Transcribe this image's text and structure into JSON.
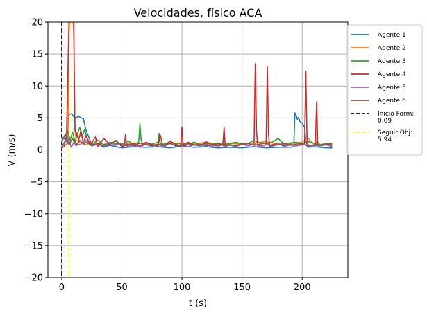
{
  "chart_data": {
    "type": "line",
    "title": "Velocidades, físico ACA",
    "xlabel": "t (s)",
    "ylabel": "V (m/s)",
    "xlim": [
      -11.5,
      238
    ],
    "ylim": [
      -20,
      20
    ],
    "xticks": [
      0,
      50,
      100,
      150,
      200
    ],
    "yticks": [
      -20,
      -15,
      -10,
      -5,
      0,
      5,
      10,
      15,
      20
    ],
    "grid": true,
    "legend_position": "outside-right-top",
    "series": [
      {
        "name": "Agente 1",
        "color": "#1f77b4",
        "x": [
          0,
          2,
          4,
          6,
          8,
          10,
          12,
          14,
          16,
          18,
          20,
          25,
          30,
          35,
          40,
          50,
          60,
          70,
          80,
          90,
          100,
          110,
          120,
          130,
          140,
          150,
          160,
          170,
          180,
          190,
          193,
          194,
          195,
          196,
          197,
          198,
          199,
          200,
          201,
          202,
          203,
          204,
          205,
          210,
          215,
          220,
          225
        ],
        "y": [
          2.0,
          1.8,
          1.3,
          5.5,
          5.7,
          5.2,
          5.0,
          5.3,
          5.0,
          4.9,
          3.2,
          0.8,
          0.9,
          0.4,
          0.7,
          0.3,
          0.5,
          0.4,
          0.5,
          0.3,
          0.6,
          0.4,
          0.5,
          0.3,
          0.4,
          0.3,
          0.5,
          0.3,
          0.4,
          0.4,
          0.5,
          5.8,
          5.4,
          4.8,
          5.1,
          4.5,
          4.3,
          4.2,
          3.9,
          3.5,
          1.5,
          0.8,
          0.4,
          0.5,
          0.4,
          0.3,
          0.3
        ]
      },
      {
        "name": "Agente 2",
        "color": "#ff7f0e",
        "x": [
          0,
          3,
          5,
          6,
          7,
          8,
          9,
          10,
          11,
          12,
          15,
          20,
          25,
          30,
          40,
          50,
          60,
          70,
          80,
          81,
          82,
          90,
          100,
          110,
          120,
          130,
          140,
          150,
          160,
          170,
          180,
          190,
          200,
          205,
          210,
          212,
          215,
          220,
          225
        ],
        "y": [
          0.6,
          0.8,
          1.0,
          18,
          22,
          20,
          22,
          18,
          3,
          1.5,
          1.2,
          0.8,
          1.2,
          0.7,
          1.0,
          0.8,
          1.1,
          0.9,
          0.8,
          2.6,
          0.9,
          1.0,
          1.1,
          0.9,
          1.2,
          0.8,
          1.0,
          0.9,
          1.1,
          1.3,
          0.9,
          1.0,
          1.2,
          1.8,
          0.9,
          1.4,
          0.8,
          1.0,
          0.9
        ]
      },
      {
        "name": "Agente 3",
        "color": "#2ca02c",
        "x": [
          0,
          3,
          5,
          7,
          9,
          11,
          13,
          15,
          17,
          19,
          21,
          23,
          25,
          30,
          35,
          40,
          45,
          50,
          55,
          60,
          64,
          65,
          66,
          68,
          70,
          75,
          80,
          81,
          82,
          85,
          90,
          95,
          100,
          105,
          110,
          115,
          120,
          125,
          130,
          135,
          140,
          145,
          150,
          155,
          160,
          165,
          170,
          175,
          180,
          185,
          190,
          195,
          200,
          205,
          210,
          215,
          220,
          225
        ],
        "y": [
          0.5,
          1.5,
          3.0,
          1.5,
          2.8,
          1.2,
          2.5,
          3.5,
          2.0,
          3.2,
          1.8,
          1.0,
          0.9,
          1.5,
          0.8,
          1.2,
          1.0,
          0.8,
          1.4,
          0.9,
          1.2,
          4.1,
          1.5,
          0.8,
          1.0,
          0.9,
          1.2,
          2.5,
          1.0,
          0.8,
          1.3,
          0.9,
          1.1,
          0.9,
          1.2,
          0.8,
          1.0,
          0.9,
          1.1,
          0.8,
          1.0,
          1.2,
          0.9,
          1.0,
          1.5,
          1.1,
          1.0,
          1.2,
          1.8,
          0.9,
          1.1,
          1.2,
          0.9,
          1.3,
          1.0,
          0.8,
          1.0,
          0.9
        ]
      },
      {
        "name": "Agente 4",
        "color": "#d62728",
        "x": [
          0,
          2,
          4,
          6,
          7,
          8,
          9,
          10,
          11,
          12,
          14,
          16,
          18,
          20,
          24,
          28,
          30,
          35,
          40,
          45,
          50,
          52,
          53,
          54,
          56,
          60,
          65,
          70,
          75,
          80,
          82,
          84,
          86,
          90,
          95,
          99,
          100,
          101,
          105,
          110,
          115,
          120,
          125,
          130,
          134,
          135,
          136,
          140,
          145,
          150,
          155,
          160,
          161,
          162,
          163,
          165,
          168,
          170,
          171,
          172,
          173,
          175,
          180,
          185,
          190,
          195,
          200,
          202,
          203,
          204,
          205,
          210,
          211,
          212,
          213,
          215,
          220,
          225
        ],
        "y": [
          0.3,
          0.5,
          2.2,
          20,
          22,
          21,
          22,
          20,
          3,
          2.8,
          1.5,
          3.0,
          1.0,
          2.2,
          0.8,
          2.0,
          0.5,
          1.8,
          0.8,
          1.5,
          0.5,
          0.6,
          2.4,
          0.5,
          0.8,
          1.0,
          0.6,
          1.2,
          0.8,
          0.6,
          2.3,
          0.7,
          0.5,
          1.4,
          0.8,
          0.6,
          3.6,
          0.5,
          1.2,
          0.8,
          0.6,
          1.3,
          0.7,
          0.6,
          0.8,
          3.5,
          0.5,
          0.8,
          0.6,
          1.0,
          0.7,
          0.9,
          13.5,
          3.0,
          0.6,
          0.8,
          0.6,
          1.0,
          13.0,
          2.5,
          0.5,
          0.8,
          1.0,
          0.6,
          0.9,
          0.6,
          0.8,
          1.0,
          12.3,
          2.0,
          0.6,
          0.8,
          1.0,
          7.5,
          0.8,
          0.6,
          0.9,
          0.7
        ]
      },
      {
        "name": "Agente 5",
        "color": "#9467bd",
        "x": [
          0,
          5,
          8,
          10,
          15,
          20,
          25,
          30,
          35,
          40,
          45,
          50,
          55,
          60,
          65,
          70,
          75,
          80,
          85,
          90,
          95,
          100,
          105,
          110,
          115,
          120,
          125,
          130,
          135,
          140,
          145,
          150,
          155,
          160,
          165,
          170,
          175,
          180,
          185,
          190,
          195,
          200,
          205,
          210,
          215,
          220,
          225
        ],
        "y": [
          0.3,
          2.0,
          0.4,
          1.2,
          0.8,
          1.5,
          0.6,
          0.9,
          0.5,
          1.2,
          0.7,
          1.0,
          0.5,
          0.8,
          0.4,
          1.0,
          0.6,
          0.8,
          0.5,
          1.1,
          0.6,
          0.9,
          0.5,
          0.8,
          0.6,
          0.9,
          0.5,
          1.0,
          0.6,
          0.7,
          0.5,
          0.9,
          0.6,
          1.0,
          0.5,
          0.8,
          0.6,
          1.0,
          0.5,
          0.8,
          0.6,
          1.0,
          0.5,
          0.7,
          0.6,
          0.8,
          0.5
        ]
      },
      {
        "name": "Agente 6",
        "color": "#8c564b",
        "x": [
          0,
          3,
          6,
          9,
          12,
          15,
          18,
          20,
          25,
          30,
          35,
          40,
          45,
          50,
          55,
          60,
          65,
          70,
          75,
          80,
          85,
          90,
          95,
          100,
          105,
          110,
          115,
          120,
          125,
          130,
          135,
          140,
          145,
          150,
          155,
          160,
          165,
          170,
          175,
          180,
          185,
          190,
          195,
          200,
          205,
          210,
          215,
          220,
          225
        ],
        "y": [
          1.2,
          2.5,
          0.8,
          1.8,
          0.6,
          1.5,
          0.9,
          1.2,
          0.7,
          1.0,
          0.6,
          0.9,
          1.4,
          0.7,
          0.9,
          0.6,
          1.1,
          0.8,
          0.6,
          0.9,
          0.7,
          1.0,
          0.6,
          0.8,
          1.0,
          0.7,
          0.9,
          0.6,
          0.8,
          1.0,
          0.7,
          0.8,
          0.6,
          0.9,
          1.0,
          0.7,
          0.9,
          1.1,
          0.6,
          0.8,
          1.0,
          0.7,
          0.9,
          1.0,
          0.6,
          0.8,
          0.7,
          0.9,
          1.0
        ]
      }
    ],
    "vlines": [
      {
        "name": "Inicio Form: 0.09",
        "x": 0.09,
        "color": "#000000"
      },
      {
        "name": "Seguir Obj: 5.94",
        "x": 5.94,
        "color": "#ffff00"
      }
    ],
    "legend": [
      {
        "label": "Agente 1",
        "color": "#1f77b4",
        "style": "solid"
      },
      {
        "label": "Agente 2",
        "color": "#ff7f0e",
        "style": "solid"
      },
      {
        "label": "Agente 3",
        "color": "#2ca02c",
        "style": "solid"
      },
      {
        "label": "Agente 4",
        "color": "#d62728",
        "style": "solid"
      },
      {
        "label": "Agente 5",
        "color": "#9467bd",
        "style": "solid"
      },
      {
        "label": "Agente 6",
        "color": "#8c564b",
        "style": "solid"
      },
      {
        "label": "Inicio Form:",
        "label2": "0.09",
        "color": "#000000",
        "style": "dashed"
      },
      {
        "label": "Seguir Obj:",
        "label2": "5.94",
        "color": "#ffff00",
        "style": "dashed"
      }
    ]
  }
}
